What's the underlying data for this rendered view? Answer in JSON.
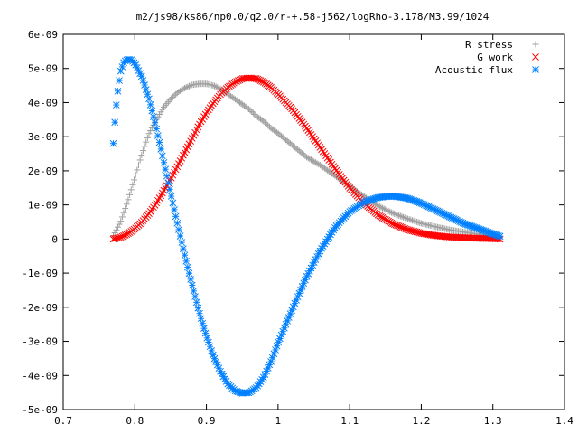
{
  "chart_data": {
    "type": "scatter",
    "title": "m2/js98/ks86/np0.0/q2.0/r-+.58-j562/logRho-3.178/M3.99/1024",
    "xlabel": "",
    "ylabel": "",
    "xlim": [
      0.7,
      1.4
    ],
    "ylim": [
      -5e-09,
      6e-09
    ],
    "grid": false,
    "legend_position": "top-right",
    "x_ticks": [
      0.7,
      0.8,
      0.9,
      1.0,
      1.1,
      1.2,
      1.3,
      1.4
    ],
    "x_tick_labels": [
      "0.7",
      "0.8",
      "0.9",
      "1",
      "1.1",
      "1.2",
      "1.3",
      "1.4"
    ],
    "y_ticks": [
      -5e-09,
      -4e-09,
      -3e-09,
      -2e-09,
      -1e-09,
      0,
      1e-09,
      2e-09,
      3e-09,
      4e-09,
      5e-09,
      6e-09
    ],
    "y_tick_labels": [
      "-5e-09",
      "-4e-09",
      "-3e-09",
      "-2e-09",
      "-1e-09",
      "0",
      "1e-09",
      "2e-09",
      "3e-09",
      "4e-09",
      "5e-09",
      "6e-09"
    ],
    "series": [
      {
        "name": "R stress",
        "marker": "plus",
        "color": "#a0a0a0",
        "x": [
          0.77,
          0.78,
          0.79,
          0.8,
          0.81,
          0.82,
          0.83,
          0.84,
          0.85,
          0.86,
          0.87,
          0.88,
          0.89,
          0.9,
          0.91,
          0.92,
          0.93,
          0.94,
          0.95,
          0.96,
          0.97,
          0.98,
          0.99,
          1.0,
          1.02,
          1.04,
          1.06,
          1.08,
          1.1,
          1.12,
          1.14,
          1.16,
          1.18,
          1.2,
          1.22,
          1.24,
          1.26,
          1.28,
          1.3,
          1.31
        ],
        "y": [
          1e-10,
          5e-10,
          1.1e-09,
          1.8e-09,
          2.5e-09,
          3.1e-09,
          3.5e-09,
          3.85e-09,
          4.1e-09,
          4.3e-09,
          4.43e-09,
          4.52e-09,
          4.55e-09,
          4.55e-09,
          4.5e-09,
          4.4e-09,
          4.25e-09,
          4.1e-09,
          3.95e-09,
          3.8e-09,
          3.6e-09,
          3.45e-09,
          3.25e-09,
          3.1e-09,
          2.75e-09,
          2.4e-09,
          2.15e-09,
          1.85e-09,
          1.55e-09,
          1.25e-09,
          9.7e-10,
          7.6e-10,
          6e-10,
          4.6e-10,
          3.6e-10,
          2.7e-10,
          2e-10,
          1.4e-10,
          8e-11,
          5e-11
        ]
      },
      {
        "name": "G work",
        "marker": "cross",
        "color": "#ff0000",
        "x": [
          0.77,
          0.78,
          0.79,
          0.8,
          0.81,
          0.82,
          0.83,
          0.84,
          0.85,
          0.86,
          0.87,
          0.88,
          0.89,
          0.9,
          0.91,
          0.92,
          0.93,
          0.94,
          0.95,
          0.96,
          0.97,
          0.98,
          0.99,
          1.0,
          1.02,
          1.04,
          1.06,
          1.08,
          1.1,
          1.12,
          1.14,
          1.16,
          1.18,
          1.2,
          1.22,
          1.24,
          1.26,
          1.28,
          1.3,
          1.31
        ],
        "y": [
          0.0,
          5e-11,
          1.5e-10,
          3e-10,
          5e-10,
          7.5e-10,
          1.05e-09,
          1.4e-09,
          1.75e-09,
          2.15e-09,
          2.55e-09,
          2.95e-09,
          3.35e-09,
          3.7e-09,
          4e-09,
          4.25e-09,
          4.45e-09,
          4.6e-09,
          4.7e-09,
          4.72e-09,
          4.7e-09,
          4.6e-09,
          4.45e-09,
          4.25e-09,
          3.8e-09,
          3.25e-09,
          2.65e-09,
          2.05e-09,
          1.5e-09,
          1.05e-09,
          7e-10,
          4.5e-10,
          2.8e-10,
          1.7e-10,
          1e-10,
          6e-11,
          4e-11,
          2e-11,
          1e-11,
          0.0
        ]
      },
      {
        "name": "Acoustic flux",
        "marker": "star",
        "color": "#0080ff",
        "x": [
          0.77,
          0.773,
          0.776,
          0.78,
          0.785,
          0.79,
          0.795,
          0.8,
          0.81,
          0.82,
          0.83,
          0.84,
          0.85,
          0.86,
          0.87,
          0.88,
          0.89,
          0.9,
          0.91,
          0.92,
          0.93,
          0.94,
          0.95,
          0.96,
          0.97,
          0.98,
          0.99,
          1.0,
          1.02,
          1.04,
          1.06,
          1.08,
          1.1,
          1.12,
          1.14,
          1.16,
          1.18,
          1.2,
          1.22,
          1.24,
          1.26,
          1.28,
          1.3,
          1.31
        ],
        "y": [
          2.8e-09,
          3.7e-09,
          4.3e-09,
          4.9e-09,
          5.2e-09,
          5.27e-09,
          5.25e-09,
          5.15e-09,
          4.75e-09,
          4.1e-09,
          3.25e-09,
          2.3e-09,
          1.35e-09,
          4e-10,
          -5e-10,
          -1.35e-09,
          -2.15e-09,
          -2.85e-09,
          -3.45e-09,
          -3.9e-09,
          -4.25e-09,
          -4.45e-09,
          -4.52e-09,
          -4.5e-09,
          -4.35e-09,
          -4.05e-09,
          -3.6e-09,
          -3.05e-09,
          -2.05e-09,
          -1.1e-09,
          -3e-10,
          3.5e-10,
          8e-10,
          1.08e-09,
          1.22e-09,
          1.26e-09,
          1.2e-09,
          1.05e-09,
          8.5e-10,
          6.5e-10,
          4.5e-10,
          3e-10,
          1.5e-10,
          8e-11
        ]
      }
    ]
  }
}
